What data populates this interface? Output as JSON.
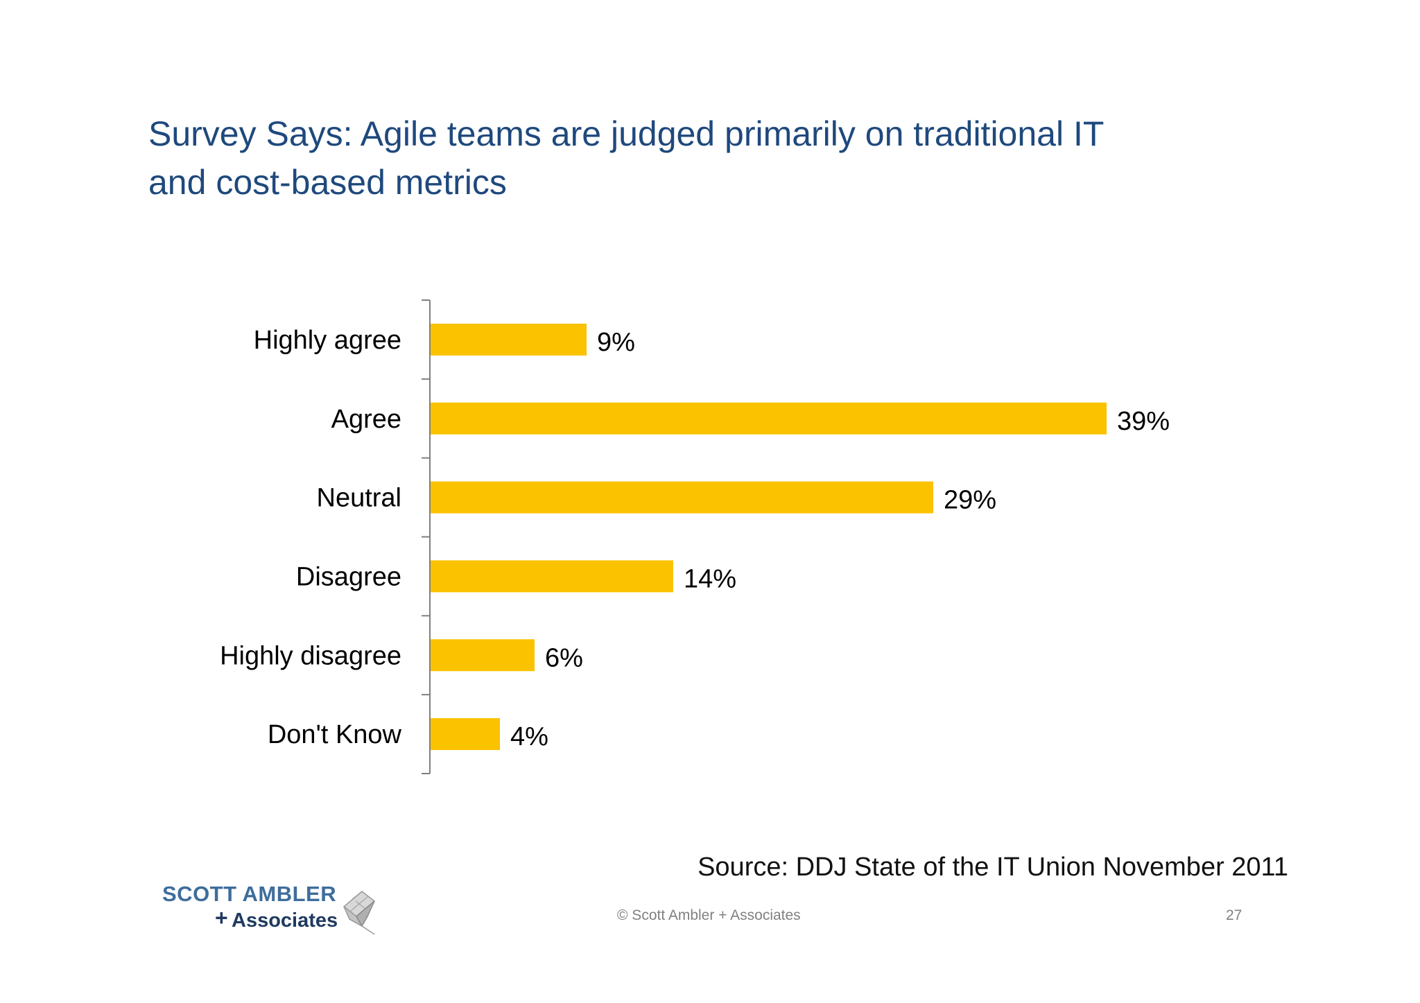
{
  "slide": {
    "title_lines": [
      "Survey Says: Agile teams are judged primarily on traditional IT",
      "and cost-based metrics"
    ],
    "source": "Source: DDJ State of the IT Union November 2011",
    "footer": {
      "copyright": "© Scott Ambler + Associates",
      "page_number": "27"
    },
    "logo": {
      "line1": "SCOTT AMBLER",
      "plus": "+",
      "line2": "Associates"
    }
  },
  "colors": {
    "title": "#1f497d",
    "bar": "#fbc200",
    "axis": "#7f7f7f",
    "label_text": "#000000"
  },
  "chart_data": {
    "type": "bar",
    "orientation": "horizontal",
    "categories": [
      "Highly agree",
      "Agree",
      "Neutral",
      "Disagree",
      "Highly disagree",
      "Don't Know"
    ],
    "values": [
      9,
      39,
      29,
      14,
      6,
      4
    ],
    "data_labels": [
      "9%",
      "39%",
      "29%",
      "14%",
      "6%",
      "4%"
    ],
    "value_unit": "%",
    "title": "",
    "xlabel": "",
    "ylabel": "",
    "xlim": [
      0,
      50
    ],
    "value_axis_visible": false,
    "grid": false,
    "legend": "none"
  }
}
